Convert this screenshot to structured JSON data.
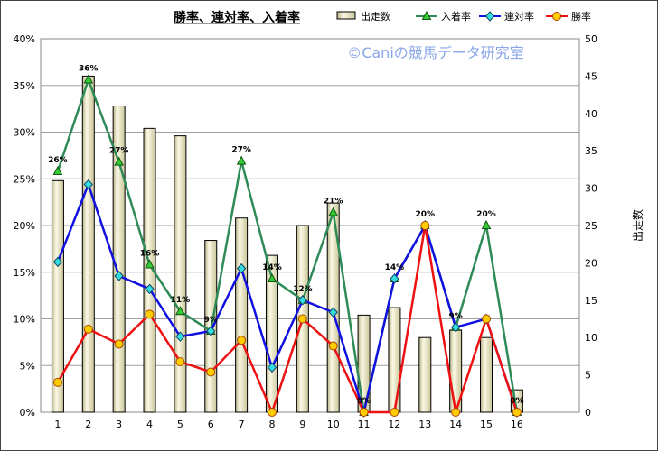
{
  "chart_data": {
    "type": "bar",
    "title": "勝率、連対率、入着率",
    "watermark": "©Caniの競馬データ研究室",
    "categories": [
      "1",
      "2",
      "3",
      "4",
      "5",
      "6",
      "7",
      "8",
      "9",
      "10",
      "11",
      "12",
      "13",
      "14",
      "15",
      "16"
    ],
    "y_left": {
      "ticks": [
        "0%",
        "5%",
        "10%",
        "15%",
        "20%",
        "25%",
        "30%",
        "35%",
        "40%"
      ],
      "ylim": [
        0,
        40
      ]
    },
    "y_right": {
      "label": "出走数",
      "ticks": [
        "0",
        "5",
        "10",
        "15",
        "20",
        "25",
        "30",
        "35",
        "40",
        "45",
        "50"
      ],
      "ylim": [
        0,
        50
      ]
    },
    "grid": true,
    "legend_position": "top",
    "series": [
      {
        "name": "出走数",
        "kind": "bar",
        "axis": "right",
        "color": "#f0ecc0",
        "values": [
          31,
          45,
          41,
          38,
          37,
          23,
          26,
          21,
          25,
          28,
          13,
          14,
          10,
          11,
          10,
          3
        ]
      },
      {
        "name": "入着率",
        "kind": "line",
        "axis": "left",
        "color": "#2e8b57",
        "marker": "triangle",
        "values": [
          25.8,
          35.6,
          26.8,
          15.8,
          10.8,
          8.7,
          26.9,
          14.3,
          12.0,
          21.4,
          0,
          14.3,
          20.0,
          9.1,
          20.0,
          0
        ],
        "labels": [
          "26%",
          "36%",
          "27%",
          "16%",
          "11%",
          "9%",
          "27%",
          "14%",
          "12%",
          "21%",
          "0%",
          "14%",
          "20%",
          "9%",
          "20%",
          "0%"
        ]
      },
      {
        "name": "連対率",
        "kind": "line",
        "axis": "left",
        "color": "#1010e0",
        "marker": "diamond",
        "values": [
          16.1,
          24.4,
          14.6,
          13.2,
          8.1,
          8.7,
          15.4,
          4.8,
          12.0,
          10.7,
          0,
          14.3,
          20.0,
          9.1,
          10.0,
          0
        ]
      },
      {
        "name": "勝率",
        "kind": "line",
        "axis": "left",
        "color": "#ee1111",
        "marker": "circle",
        "values": [
          3.2,
          8.9,
          7.3,
          10.5,
          5.4,
          4.3,
          7.7,
          0,
          10.0,
          7.1,
          0,
          0,
          20.0,
          0,
          10.0,
          0
        ]
      }
    ]
  }
}
